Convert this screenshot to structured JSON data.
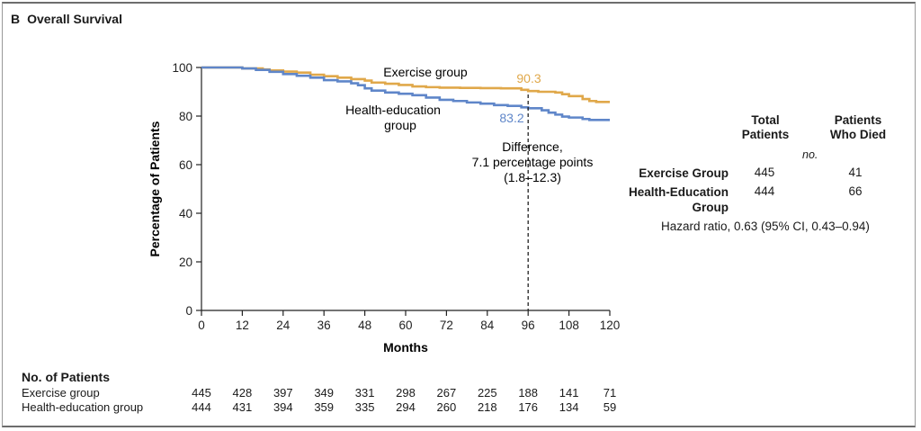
{
  "panel": {
    "letter": "B",
    "title": "Overall Survival"
  },
  "colors": {
    "exercise": "#E0A84A",
    "health_education": "#5F86C9",
    "axis": "#222222"
  },
  "chart_data": {
    "type": "line",
    "step": true,
    "xlabel": "Months",
    "ylabel": "Percentage of Patients",
    "xlim": [
      0,
      120
    ],
    "ylim": [
      0,
      100
    ],
    "xticks": [
      0,
      12,
      24,
      36,
      48,
      60,
      72,
      84,
      96,
      108,
      120
    ],
    "yticks": [
      0,
      20,
      40,
      60,
      80,
      100
    ],
    "series": [
      {
        "name": "Exercise group",
        "points": [
          [
            0,
            100
          ],
          [
            6,
            100
          ],
          [
            12,
            99.6
          ],
          [
            18,
            99.2
          ],
          [
            20,
            98.8
          ],
          [
            24,
            98.3
          ],
          [
            28,
            97.9
          ],
          [
            32,
            97.0
          ],
          [
            36,
            96.4
          ],
          [
            40,
            95.8
          ],
          [
            44,
            95.2
          ],
          [
            48,
            94.6
          ],
          [
            50,
            93.8
          ],
          [
            54,
            93.3
          ],
          [
            58,
            92.8
          ],
          [
            62,
            92.2
          ],
          [
            66,
            91.9
          ],
          [
            70,
            91.7
          ],
          [
            76,
            91.6
          ],
          [
            82,
            91.5
          ],
          [
            88,
            91.4
          ],
          [
            94,
            90.8
          ],
          [
            96,
            90.3
          ],
          [
            99,
            90.0
          ],
          [
            104,
            89.7
          ],
          [
            106,
            89.0
          ],
          [
            108,
            88.2
          ],
          [
            112,
            87.0
          ],
          [
            114,
            86.2
          ],
          [
            116,
            85.8
          ],
          [
            120,
            85.8
          ]
        ]
      },
      {
        "name": "Health-education group",
        "points": [
          [
            0,
            100
          ],
          [
            6,
            100
          ],
          [
            12,
            99.6
          ],
          [
            16,
            99.0
          ],
          [
            20,
            98.2
          ],
          [
            24,
            97.3
          ],
          [
            28,
            96.6
          ],
          [
            32,
            95.8
          ],
          [
            36,
            94.8
          ],
          [
            40,
            94.3
          ],
          [
            44,
            93.5
          ],
          [
            46,
            92.7
          ],
          [
            48,
            91.4
          ],
          [
            50,
            90.5
          ],
          [
            54,
            89.7
          ],
          [
            58,
            89.2
          ],
          [
            62,
            88.6
          ],
          [
            66,
            87.6
          ],
          [
            70,
            86.7
          ],
          [
            74,
            86.2
          ],
          [
            78,
            85.6
          ],
          [
            82,
            85.1
          ],
          [
            86,
            84.5
          ],
          [
            90,
            84.2
          ],
          [
            94,
            83.6
          ],
          [
            96,
            83.2
          ],
          [
            100,
            82.4
          ],
          [
            102,
            81.4
          ],
          [
            104,
            80.6
          ],
          [
            106,
            79.8
          ],
          [
            108,
            79.4
          ],
          [
            112,
            78.8
          ],
          [
            114,
            78.4
          ],
          [
            120,
            78.4
          ]
        ]
      }
    ],
    "annotations": {
      "exercise_label": "Exercise group",
      "health_label_line1": "Health-education",
      "health_label_line2": "group",
      "exercise_value": "90.3",
      "health_value": "83.2",
      "difference_line1": "Difference,",
      "difference_line2": "7.1 percentage points",
      "difference_line3": "(1.8–12.3)",
      "difference_at_month": 96
    }
  },
  "summary_table": {
    "col1_header_1": "Total",
    "col1_header_2": "Patients",
    "col2_header_1": "Patients",
    "col2_header_2": "Who Died",
    "unit_note": "no.",
    "rows": [
      {
        "label_1": "Exercise Group",
        "label_2": "",
        "total": "445",
        "died": "41"
      },
      {
        "label_1": "Health-Education",
        "label_2": "Group",
        "total": "444",
        "died": "66"
      }
    ],
    "hazard_ratio": "Hazard ratio, 0.63 (95% CI, 0.43–0.94)"
  },
  "at_risk": {
    "title": "No. of Patients",
    "rows": [
      {
        "label": "Exercise group",
        "values": [
          "445",
          "428",
          "397",
          "349",
          "331",
          "298",
          "267",
          "225",
          "188",
          "141",
          "71"
        ]
      },
      {
        "label": "Health-education group",
        "values": [
          "444",
          "431",
          "394",
          "359",
          "335",
          "294",
          "260",
          "218",
          "176",
          "134",
          "59"
        ]
      }
    ]
  }
}
